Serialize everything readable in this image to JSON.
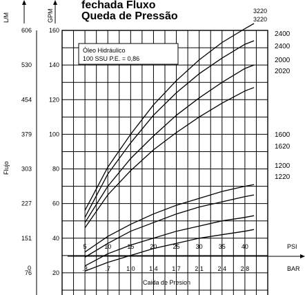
{
  "chart_data": {
    "type": "line",
    "title_line1": "fechada Fluxo",
    "title_line2": "Queda de Pressão",
    "annotation_top_line1": "3220",
    "annotation_top_line2": "3220",
    "note_line1": "Óleo Hidráulico",
    "note_line2": "100 SSU P.E. = 0,86",
    "ylabel_gpm": "GPM",
    "ylabel_lm": "L/M",
    "ylabel_flujo": "Flujo",
    "xlabel_psi_unit": "PSI",
    "xlabel_bar_unit": "BAR",
    "xlabel": "Caida de Presion",
    "xlim_psi": [
      0,
      45
    ],
    "ylim_gpm": [
      0,
      160
    ],
    "gpm_ticks": [
      "20",
      "40",
      "60",
      "80",
      "100",
      "120",
      "140",
      "160"
    ],
    "lm_ticks": [
      "76",
      "151",
      "227",
      "303",
      "379",
      "454",
      "530",
      "606"
    ],
    "lm_zero": "0",
    "psi_ticks": [
      "5",
      "10",
      "15",
      "20",
      "25",
      "30",
      "35",
      "40"
    ],
    "bar_ticks": [
      ".3",
      ".7",
      "1.0",
      "1.4",
      "1.7",
      "2.1",
      "2.4",
      "2.8"
    ],
    "series": [
      {
        "name": "2400",
        "psi": [
          5,
          10,
          15,
          20,
          25,
          30,
          35,
          40,
          42
        ],
        "gpm": [
          56,
          81,
          100,
          117,
          131,
          143,
          153,
          161,
          164
        ]
      },
      {
        "name": "2400",
        "psi": [
          5,
          10,
          15,
          20,
          25,
          30,
          35,
          40,
          42
        ],
        "gpm": [
          52,
          77,
          95,
          111,
          124,
          135,
          144,
          152,
          154
        ]
      },
      {
        "name": "2000",
        "psi": [
          5,
          10,
          15,
          20,
          25,
          30,
          35,
          40,
          42
        ],
        "gpm": [
          49,
          70,
          86,
          99,
          111,
          121,
          130,
          138,
          140
        ]
      },
      {
        "name": "2020",
        "psi": [
          5,
          10,
          15,
          20,
          25,
          30,
          35,
          40,
          42
        ],
        "gpm": [
          46,
          65,
          79,
          91,
          101,
          110,
          118,
          125,
          127
        ]
      },
      {
        "name": "1600",
        "psi": [
          5,
          10,
          15,
          20,
          25,
          30,
          35,
          40,
          42
        ],
        "gpm": [
          32,
          41,
          48,
          54,
          59,
          63,
          67,
          70,
          71
        ]
      },
      {
        "name": "1620",
        "psi": [
          5,
          10,
          15,
          20,
          25,
          30,
          35,
          40,
          42
        ],
        "gpm": [
          29,
          37,
          44,
          49,
          54,
          58,
          61,
          64,
          65
        ]
      },
      {
        "name": "1200",
        "psi": [
          5,
          10,
          15,
          20,
          25,
          30,
          35,
          40,
          42
        ],
        "gpm": [
          24,
          31,
          36,
          40,
          44,
          47,
          50,
          52,
          53
        ]
      },
      {
        "name": "1220",
        "psi": [
          5,
          10,
          15,
          20,
          25,
          30,
          35,
          40,
          42
        ],
        "gpm": [
          21,
          26,
          30,
          34,
          37,
          40,
          42,
          44,
          45
        ]
      }
    ],
    "grid": true
  }
}
